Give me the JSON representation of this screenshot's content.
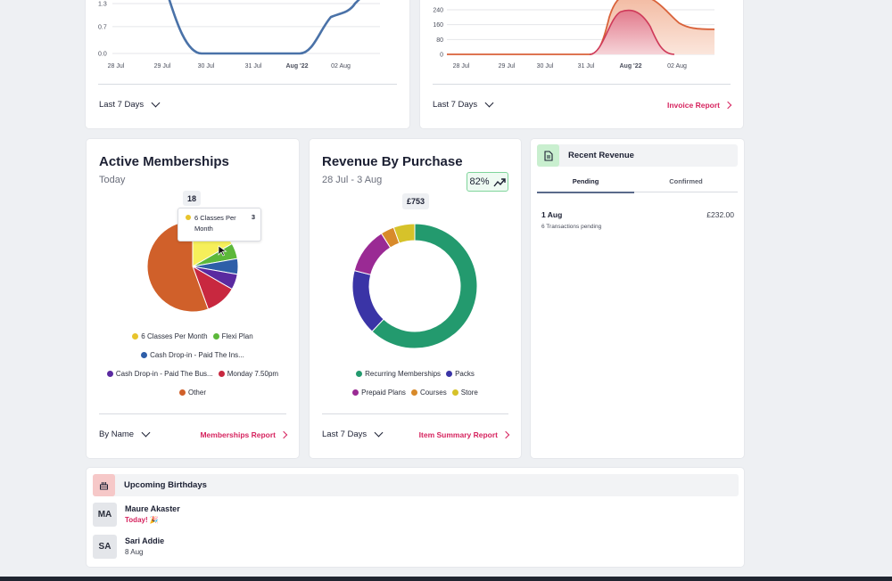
{
  "top_left_chart": {
    "y_ticks": [
      "1.3",
      "0.7",
      "0.0"
    ],
    "x_ticks": [
      "28 Jul",
      "29 Jul",
      "30 Jul",
      "31 Jul",
      "Aug '22",
      "02 Aug"
    ],
    "line_color": "#4a72a8",
    "footer_select": "Last 7 Days"
  },
  "top_right_chart": {
    "y_ticks": [
      "240",
      "160",
      "80",
      "0"
    ],
    "x_ticks": [
      "28 Jul",
      "29 Jul",
      "30 Jul",
      "31 Jul",
      "Aug '22",
      "02 Aug"
    ],
    "footer_select": "Last 7 Days",
    "footer_link": "Invoice Report"
  },
  "active_memberships": {
    "title": "Active Memberships",
    "subtitle": "Today",
    "total_label": "18",
    "tooltip": {
      "label": "6 Classes Per Month",
      "value": "3"
    },
    "legend": [
      {
        "label": "6 Classes Per Month",
        "color": "#e8c42c"
      },
      {
        "label": "Flexi Plan",
        "color": "#5cb83a"
      },
      {
        "label": "Cash Drop-in - Paid The Ins...",
        "color": "#2e5ea8"
      },
      {
        "label": "Cash Drop-in - Paid The Bus...",
        "color": "#5a2aa0"
      },
      {
        "label": "Monday 7.50pm",
        "color": "#c8283f"
      },
      {
        "label": "Other",
        "color": "#d0602a"
      }
    ],
    "footer_select": "By Name",
    "footer_link": "Memberships Report"
  },
  "revenue_by_purchase": {
    "title": "Revenue By Purchase",
    "subtitle": "28 Jul - 3 Aug",
    "badge": "82%",
    "center_label": "£753",
    "legend": [
      {
        "label": "Recurring Memberships",
        "color": "#239a6e"
      },
      {
        "label": "Packs",
        "color": "#3a34a6"
      },
      {
        "label": "Prepaid Plans",
        "color": "#9a2a94"
      },
      {
        "label": "Courses",
        "color": "#d88a2a"
      },
      {
        "label": "Store",
        "color": "#d6c22a"
      }
    ],
    "footer_select": "Last 7 Days",
    "footer_link": "Item Summary Report"
  },
  "recent_revenue": {
    "title": "Recent Revenue",
    "tabs": [
      "Pending",
      "Confirmed"
    ],
    "active_tab": "Pending",
    "rows": [
      {
        "date": "1 Aug",
        "detail": "6 Transactions pending",
        "amount": "£232.00"
      }
    ]
  },
  "upcoming_birthdays": {
    "title": "Upcoming Birthdays",
    "people": [
      {
        "initials": "MA",
        "name": "Maure Akaster",
        "when": "Today! 🎉"
      },
      {
        "initials": "SA",
        "name": "Sari Addie",
        "when": "8 Aug"
      }
    ]
  },
  "chart_data": [
    {
      "type": "line",
      "x": [
        "28 Jul",
        "29 Jul",
        "30 Jul",
        "31 Jul",
        "Aug '22",
        "02 Aug"
      ],
      "series": [
        {
          "values": [
            1.3,
            1.3,
            0.0,
            0.0,
            0.0,
            1.0
          ]
        }
      ],
      "ylim": [
        0,
        1.3
      ]
    },
    {
      "type": "area",
      "x": [
        "28 Jul",
        "29 Jul",
        "30 Jul",
        "31 Jul",
        "Aug '22",
        "02 Aug"
      ],
      "series": [
        {
          "values": [
            0,
            0,
            0,
            0,
            300,
            140
          ],
          "color": "#d9623a"
        },
        {
          "values": [
            0,
            0,
            0,
            0,
            240,
            0
          ],
          "color": "#cf3a5a"
        }
      ],
      "ylim": [
        0,
        240
      ]
    },
    {
      "type": "pie",
      "categories": [
        "6 Classes Per Month",
        "Flexi Plan",
        "Cash Drop-in - Paid The Ins...",
        "Cash Drop-in - Paid The Bus...",
        "Monday 7.50pm",
        "Other"
      ],
      "values": [
        3,
        1,
        1,
        1,
        2,
        10
      ],
      "colors": [
        "#f6ef5a",
        "#5cb83a",
        "#2e5ea8",
        "#5a2aa0",
        "#c8283f",
        "#d0602a"
      ]
    },
    {
      "type": "pie",
      "categories": [
        "Recurring Memberships",
        "Packs",
        "Prepaid Plans",
        "Courses",
        "Store"
      ],
      "values": [
        62,
        17,
        12,
        3.5,
        5.5
      ],
      "colors": [
        "#239a6e",
        "#3a34a6",
        "#9a2a94",
        "#d88a2a",
        "#d6c22a"
      ]
    }
  ]
}
